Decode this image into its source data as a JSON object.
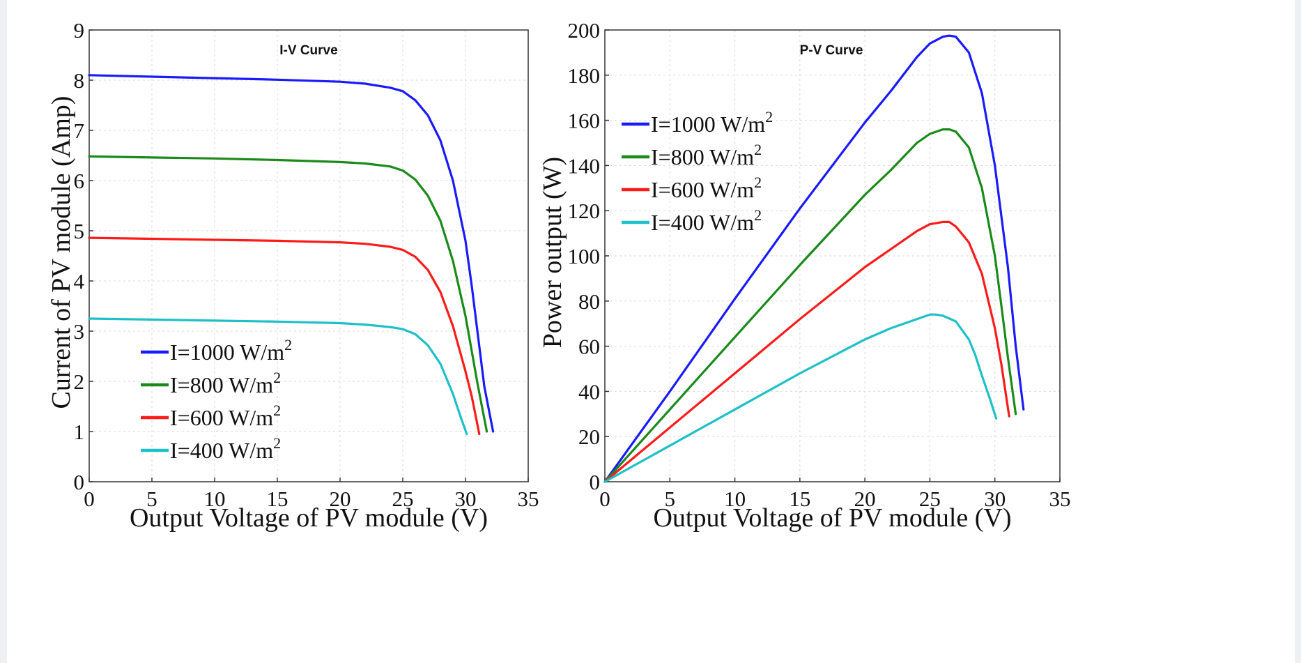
{
  "colors": {
    "c1000": "#1a1aff",
    "c800": "#1a8a1a",
    "c600": "#ff1a1a",
    "c400": "#1ec0c8"
  },
  "chart_data": [
    {
      "type": "line",
      "title": "I-V Curve",
      "xlabel": "Output Voltage of PV module (V)",
      "ylabel": "Current of PV module (Amp)",
      "xlim": [
        0,
        35
      ],
      "ylim": [
        0,
        9
      ],
      "xticks": [
        "0",
        "5",
        "10",
        "15",
        "20",
        "25",
        "30",
        "35"
      ],
      "yticks": [
        "0",
        "1",
        "2",
        "3",
        "4",
        "5",
        "6",
        "7",
        "8",
        "9"
      ],
      "grid": true,
      "legend": "bottom-left",
      "series": [
        {
          "name": "I=1000 W/m",
          "sup": "2",
          "color_key": "c1000",
          "x": [
            0,
            5,
            10,
            15,
            20,
            22,
            24,
            25,
            26,
            27,
            28,
            29,
            30,
            30.5,
            31,
            31.5,
            32.2
          ],
          "y": [
            8.1,
            8.07,
            8.04,
            8.01,
            7.97,
            7.93,
            7.85,
            7.78,
            7.6,
            7.3,
            6.8,
            6.0,
            4.8,
            3.9,
            2.9,
            1.9,
            1.0
          ]
        },
        {
          "name": "I=800 W/m",
          "sup": "2",
          "color_key": "c800",
          "x": [
            0,
            5,
            10,
            15,
            20,
            22,
            24,
            25,
            26,
            27,
            28,
            29,
            30,
            30.5,
            31,
            31.7
          ],
          "y": [
            6.48,
            6.46,
            6.44,
            6.41,
            6.37,
            6.34,
            6.28,
            6.2,
            6.02,
            5.7,
            5.2,
            4.4,
            3.3,
            2.6,
            1.9,
            1.0
          ]
        },
        {
          "name": "I=600 W/m",
          "sup": "2",
          "color_key": "c600",
          "x": [
            0,
            5,
            10,
            15,
            20,
            22,
            24,
            25,
            26,
            27,
            28,
            29,
            30,
            30.5,
            31.1
          ],
          "y": [
            4.86,
            4.84,
            4.82,
            4.8,
            4.77,
            4.74,
            4.68,
            4.62,
            4.48,
            4.22,
            3.78,
            3.1,
            2.2,
            1.7,
            0.95
          ]
        },
        {
          "name": "I=400 W/m",
          "sup": "2",
          "color_key": "c400",
          "x": [
            0,
            5,
            10,
            15,
            20,
            22,
            24,
            25,
            26,
            27,
            28,
            29,
            29.6,
            30.1
          ],
          "y": [
            3.25,
            3.23,
            3.21,
            3.19,
            3.16,
            3.13,
            3.08,
            3.04,
            2.94,
            2.72,
            2.35,
            1.75,
            1.3,
            0.95
          ]
        }
      ]
    },
    {
      "type": "line",
      "title": "P-V Curve",
      "xlabel": "Output Voltage of PV module (V)",
      "ylabel": "Power output (W)",
      "xlim": [
        0,
        35
      ],
      "ylim": [
        0,
        200
      ],
      "xticks": [
        "0",
        "5",
        "10",
        "15",
        "20",
        "25",
        "30",
        "35"
      ],
      "yticks": [
        "0",
        "20",
        "40",
        "60",
        "80",
        "100",
        "120",
        "140",
        "160",
        "180",
        "200"
      ],
      "grid": true,
      "legend": "top-left",
      "series": [
        {
          "name": "I=1000 W/m",
          "sup": "2",
          "color_key": "c1000",
          "x": [
            0,
            5,
            10,
            15,
            20,
            22,
            24,
            25,
            26,
            26.5,
            27,
            28,
            29,
            30,
            31,
            31.6,
            32.2
          ],
          "y": [
            0,
            40,
            81,
            121,
            159,
            173,
            188,
            194,
            197,
            197.5,
            197,
            190,
            172,
            140,
            95,
            60,
            32
          ]
        },
        {
          "name": "I=800 W/m",
          "sup": "2",
          "color_key": "c800",
          "x": [
            0,
            5,
            10,
            15,
            20,
            22,
            24,
            25,
            26,
            26.5,
            27,
            28,
            29,
            30,
            30.5,
            31,
            31.6
          ],
          "y": [
            0,
            32,
            64,
            96,
            127,
            138,
            150,
            154,
            156,
            156,
            155,
            148,
            130,
            100,
            78,
            55,
            30
          ]
        },
        {
          "name": "I=600 W/m",
          "sup": "2",
          "color_key": "c600",
          "x": [
            0,
            5,
            10,
            15,
            20,
            22,
            24,
            25,
            26,
            26.5,
            27,
            28,
            29,
            30,
            30.5,
            31.1
          ],
          "y": [
            0,
            24,
            48,
            72,
            95,
            103,
            111,
            114,
            115,
            115,
            113,
            106,
            92,
            68,
            52,
            29
          ]
        },
        {
          "name": "I=400 W/m",
          "sup": "2",
          "color_key": "c400",
          "x": [
            0,
            5,
            10,
            15,
            20,
            22,
            24,
            25,
            25.5,
            26,
            27,
            28,
            28.5,
            29,
            29.6,
            30.1
          ],
          "y": [
            0,
            16,
            32,
            48,
            63,
            68,
            72,
            74,
            74,
            73.5,
            71,
            63,
            56,
            47,
            37,
            28
          ]
        }
      ]
    }
  ]
}
